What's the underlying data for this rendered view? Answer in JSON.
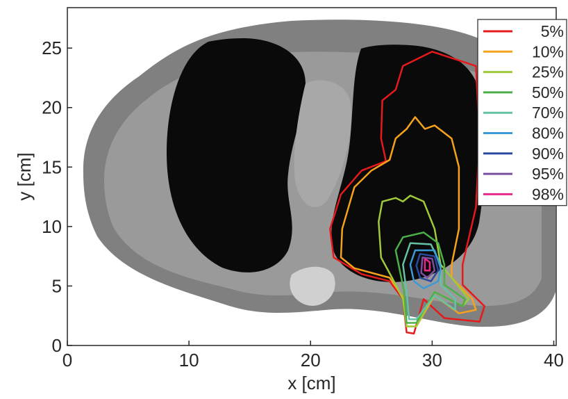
{
  "chart_data": {
    "type": "contour",
    "xlabel": "x [cm]",
    "ylabel": "y [cm]",
    "xlim": [
      0,
      40.2
    ],
    "ylim": [
      0,
      28.4
    ],
    "xticks": [
      0,
      10,
      20,
      30,
      40
    ],
    "yticks": [
      0,
      5,
      10,
      15,
      20,
      25
    ],
    "legend": "top-right",
    "series": [
      {
        "name": "5%",
        "color": "#e41a1c",
        "x": [
          30.0,
          33.6,
          33.9,
          33.6,
          32.5,
          32.5,
          34.3,
          33.9,
          31.0,
          29.3,
          28.5,
          27.9,
          27.6,
          26.5,
          24.2,
          21.9,
          21.6,
          22.5,
          24.2,
          26.2,
          25.8,
          25.9,
          27.0,
          27.6
        ],
        "y": [
          24.7,
          23.5,
          17.4,
          11.6,
          6.8,
          5.1,
          3.3,
          2.0,
          2.3,
          3.9,
          1.0,
          1.1,
          3.9,
          5.4,
          6.0,
          7.4,
          9.8,
          12.7,
          14.7,
          15.5,
          17.4,
          20.6,
          21.5,
          23.5
        ]
      },
      {
        "name": "10%",
        "color": "#f7a21b",
        "x": [
          28.6,
          29.4,
          30.2,
          31.6,
          32.2,
          32.2,
          31.6,
          31.6,
          33.3,
          33.6,
          32.2,
          30.2,
          28.7,
          27.9,
          27.7,
          26.5,
          23.6,
          22.5,
          22.6,
          23.6,
          25.0,
          26.5,
          27.0,
          27.9
        ],
        "y": [
          19.2,
          18.2,
          18.5,
          17.4,
          15.0,
          9.8,
          6.8,
          5.7,
          3.9,
          3.0,
          2.7,
          4.2,
          1.6,
          1.6,
          3.9,
          5.7,
          6.5,
          7.4,
          9.8,
          13.3,
          14.7,
          15.6,
          17.4,
          18.2
        ]
      },
      {
        "name": "25%",
        "color": "#9fcb3b",
        "x": [
          25.9,
          27.0,
          27.6,
          28.2,
          29.3,
          30.2,
          30.7,
          31.6,
          33.0,
          32.5,
          30.2,
          28.7,
          27.9,
          27.6,
          26.7,
          25.8,
          25.6
        ],
        "y": [
          12.1,
          12.4,
          12.1,
          12.6,
          12.1,
          9.8,
          6.8,
          5.7,
          3.9,
          3.3,
          4.5,
          1.6,
          1.6,
          3.9,
          5.7,
          7.4,
          10.4
        ]
      },
      {
        "name": "50%",
        "color": "#4daf4a",
        "x": [
          27.6,
          29.3,
          30.5,
          31.0,
          31.0,
          32.7,
          32.5,
          30.2,
          28.7,
          27.9,
          27.7,
          27.3,
          27.0
        ],
        "y": [
          9.1,
          9.5,
          8.6,
          6.8,
          5.1,
          3.9,
          3.3,
          4.5,
          1.9,
          1.9,
          4.5,
          6.5,
          8.0
        ]
      },
      {
        "name": "70%",
        "color": "#66c2a5",
        "x": [
          28.2,
          29.9,
          30.7,
          30.7,
          31.9,
          31.9,
          30.2,
          28.7,
          28.1,
          27.9,
          27.6
        ],
        "y": [
          8.6,
          8.5,
          6.8,
          5.1,
          3.9,
          3.0,
          4.2,
          2.2,
          2.2,
          4.5,
          6.8
        ]
      },
      {
        "name": "80%",
        "color": "#3b9ad6",
        "x": [
          28.6,
          30.2,
          30.7,
          30.5,
          29.3,
          28.5,
          28.2
        ],
        "y": [
          8.0,
          8.0,
          6.5,
          5.4,
          4.8,
          5.4,
          6.8
        ]
      },
      {
        "name": "90%",
        "color": "#2a4a9f",
        "x": [
          29.0,
          30.2,
          30.5,
          29.9,
          29.0,
          28.7
        ],
        "y": [
          7.7,
          7.5,
          6.3,
          5.4,
          5.7,
          6.7
        ]
      },
      {
        "name": "95%",
        "color": "#7b4fa0",
        "x": [
          29.2,
          30.0,
          30.2,
          29.6,
          29.1
        ],
        "y": [
          7.4,
          7.3,
          6.3,
          5.7,
          6.1
        ]
      },
      {
        "name": "98%",
        "color": "#e7298a",
        "x": [
          29.4,
          29.8,
          29.8,
          29.4
        ],
        "y": [
          7.3,
          7.0,
          6.3,
          6.3
        ]
      }
    ]
  }
}
